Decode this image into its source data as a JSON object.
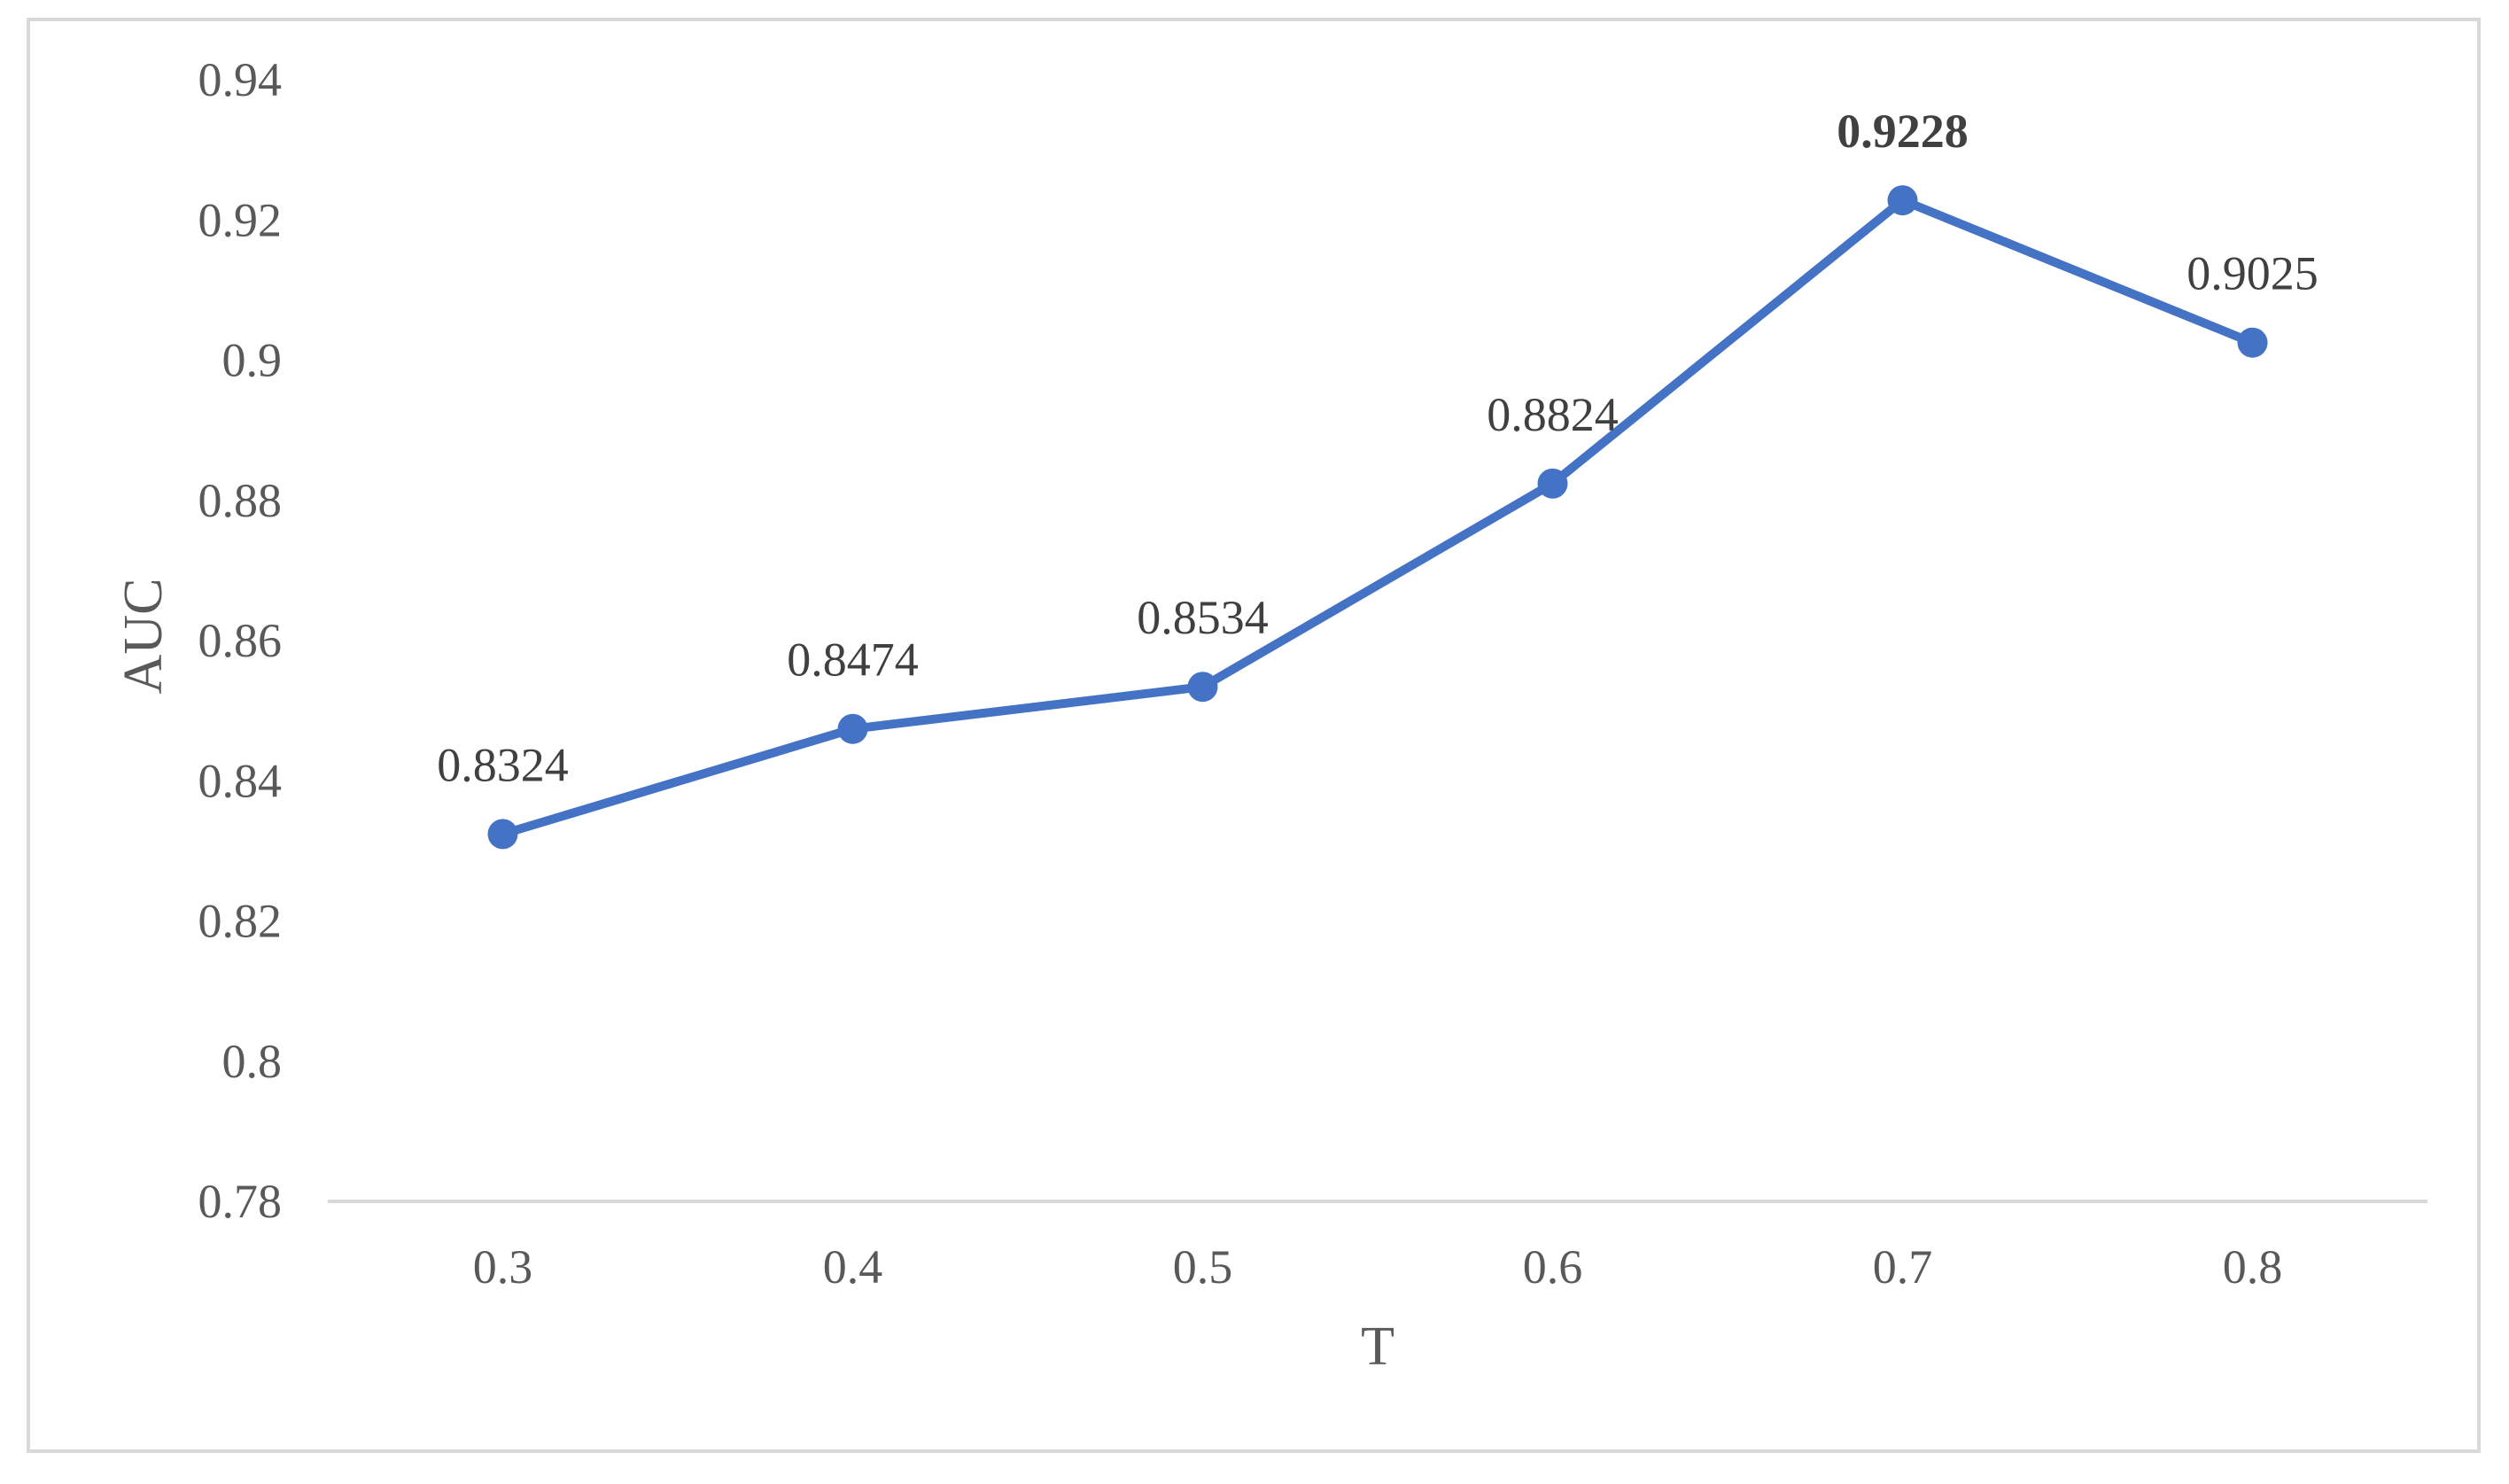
{
  "chart_data": {
    "type": "line",
    "title": "",
    "xlabel": "T",
    "ylabel": "AUC",
    "x": [
      "0.3",
      "0.4",
      "0.5",
      "0.6",
      "0.7",
      "0.8"
    ],
    "series": [
      {
        "values": [
          0.8324,
          0.8474,
          0.8534,
          0.8824,
          0.9228,
          0.9025
        ],
        "data_labels": [
          "0.8324",
          "0.8474",
          "0.8534",
          "0.8824",
          "0.9228",
          "0.9025"
        ],
        "bold_label_index": 4,
        "color": "#4472c4"
      }
    ],
    "ylim": [
      0.78,
      0.94
    ],
    "yticks": [
      "0.78",
      "0.8",
      "0.82",
      "0.84",
      "0.86",
      "0.88",
      "0.9",
      "0.92",
      "0.94"
    ],
    "grid": false,
    "legend": "none"
  }
}
